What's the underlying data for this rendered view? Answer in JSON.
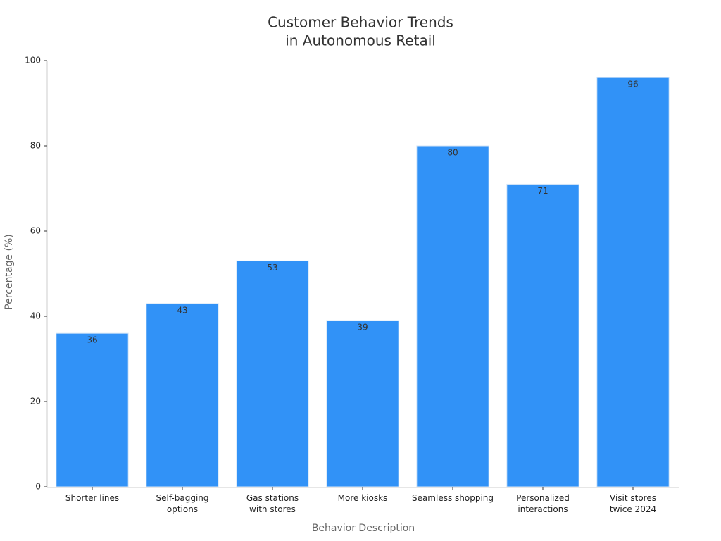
{
  "chart_data": {
    "type": "bar",
    "title": [
      "Customer Behavior Trends",
      "in Autonomous Retail"
    ],
    "x_label": "Behavior Description",
    "y_label": "Percentage (%)",
    "categories": [
      "Shorter lines",
      "Self-bagging\noptions",
      "Gas stations\nwith stores",
      "More kiosks",
      "Seamless shopping",
      "Personalized\ninteractions",
      "Visit stores\ntwice 2024"
    ],
    "values": [
      36,
      43,
      53,
      39,
      80,
      71,
      96
    ],
    "color": "#3192f7",
    "ylim": [
      0,
      100
    ],
    "yticks": [
      0,
      20,
      40,
      60,
      80,
      100
    ],
    "grid": false
  }
}
